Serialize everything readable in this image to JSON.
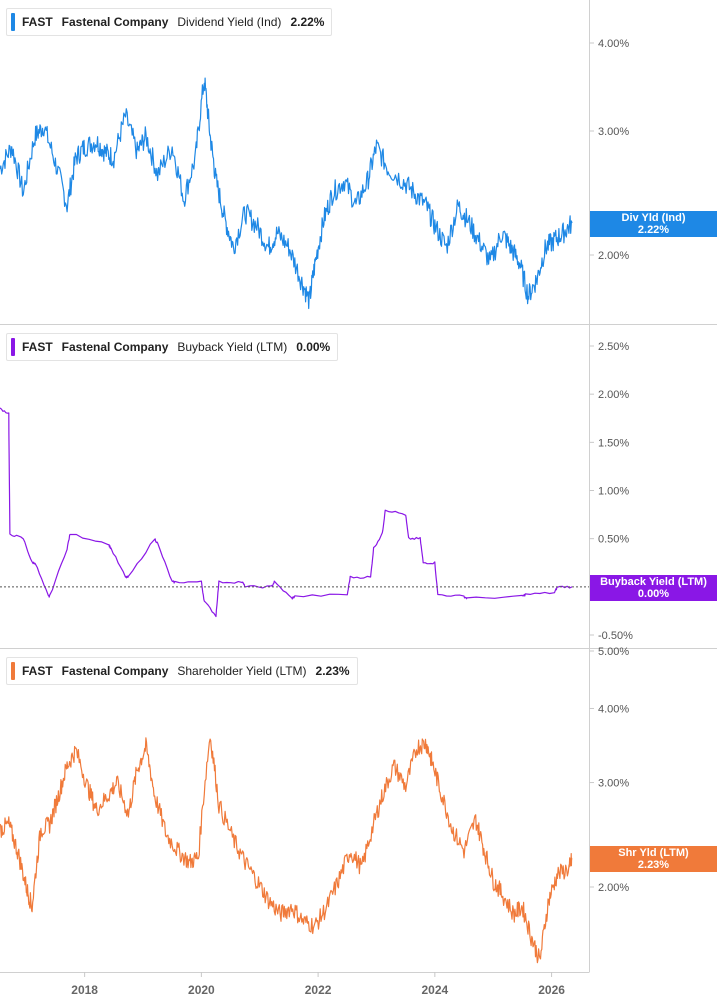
{
  "panels": [
    {
      "ticker": "FAST",
      "company": "Fastenal Company",
      "metric": "Dividend Yield (Ind)",
      "value": "2.22%",
      "color": "#1e88e5",
      "tag_label": "Div Yld (Ind)",
      "tag_value": "2.22%"
    },
    {
      "ticker": "FAST",
      "company": "Fastenal Company",
      "metric": "Buyback Yield (LTM)",
      "value": "0.00%",
      "color": "#8a17e6",
      "tag_label": "Buyback Yield (LTM)",
      "tag_value": "0.00%"
    },
    {
      "ticker": "FAST",
      "company": "Fastenal Company",
      "metric": "Shareholder Yield (LTM)",
      "value": "2.23%",
      "color": "#f07a3a",
      "tag_label": "Shr Yld (LTM)",
      "tag_value": "2.23%"
    }
  ],
  "chart_data": [
    {
      "type": "line",
      "series": [
        {
          "name": "Dividend Yield (Ind)",
          "color": "#1e88e5",
          "x": [
            2016.55,
            2016.75,
            2016.95,
            2017.15,
            2017.3,
            2017.5,
            2017.7,
            2017.85,
            2018.0,
            2018.2,
            2018.35,
            2018.5,
            2018.7,
            2018.9,
            2019.05,
            2019.25,
            2019.5,
            2019.7,
            2019.9,
            2020.05,
            2020.15,
            2020.25,
            2020.4,
            2020.55,
            2020.75,
            2020.95,
            2021.15,
            2021.3,
            2021.5,
            2021.7,
            2021.85,
            2021.95,
            2022.1,
            2022.25,
            2022.45,
            2022.65,
            2022.85,
            2023.0,
            2023.2,
            2023.45,
            2023.65,
            2023.85,
            2024.0,
            2024.2,
            2024.4,
            2024.55,
            2024.75,
            2024.95,
            2025.15,
            2025.3,
            2025.45,
            2025.6,
            2025.75,
            2025.9,
            2026.05,
            2026.2,
            2026.35
          ],
          "y": [
            2.65,
            2.85,
            2.45,
            2.95,
            3.05,
            2.7,
            2.35,
            2.75,
            2.85,
            2.9,
            2.8,
            2.75,
            3.15,
            2.8,
            2.95,
            2.6,
            2.85,
            2.4,
            2.75,
            3.55,
            2.95,
            2.55,
            2.25,
            2.05,
            2.3,
            2.2,
            2.05,
            2.15,
            2.05,
            1.85,
            1.72,
            1.95,
            2.25,
            2.45,
            2.55,
            2.35,
            2.55,
            2.85,
            2.65,
            2.55,
            2.45,
            2.35,
            2.2,
            2.05,
            2.35,
            2.25,
            2.1,
            1.95,
            2.15,
            2.05,
            1.95,
            1.75,
            1.85,
            2.05,
            2.1,
            2.15,
            2.22
          ]
        }
      ],
      "yticks": [
        "4.00%",
        "3.00%",
        "2.00%"
      ],
      "scale": "log"
    },
    {
      "type": "line",
      "series": [
        {
          "name": "Buyback Yield (LTM)",
          "color": "#8a17e6",
          "x": [
            2016.55,
            2016.7,
            2016.72,
            2016.95,
            2017.1,
            2017.15,
            2017.38,
            2017.4,
            2017.7,
            2017.75,
            2018.4,
            2018.45,
            2018.7,
            2018.75,
            2019.2,
            2019.25,
            2019.5,
            2019.55,
            2020.0,
            2020.05,
            2020.25,
            2020.3,
            2020.7,
            2020.75,
            2021.2,
            2021.25,
            2021.55,
            2021.6,
            2022.5,
            2022.55,
            2022.9,
            2022.95,
            2023.1,
            2023.15,
            2023.5,
            2023.55,
            2023.75,
            2023.8,
            2024.0,
            2024.05,
            2024.5,
            2024.55,
            2025.5,
            2025.55,
            2026.05,
            2026.1,
            2026.35
          ],
          "y": [
            1.85,
            1.8,
            0.55,
            0.5,
            0.25,
            0.25,
            -0.1,
            -0.1,
            0.4,
            0.55,
            0.45,
            0.4,
            0.1,
            0.1,
            0.5,
            0.45,
            0.05,
            0.05,
            0.05,
            -0.15,
            -0.3,
            0.05,
            0.05,
            0.0,
            0.0,
            0.05,
            -0.12,
            -0.1,
            -0.08,
            0.1,
            0.1,
            0.4,
            0.55,
            0.8,
            0.75,
            0.5,
            0.5,
            0.25,
            0.25,
            -0.08,
            -0.1,
            -0.12,
            -0.1,
            -0.08,
            -0.06,
            0.0,
            0.0
          ]
        }
      ],
      "yticks": [
        "2.50%",
        "2.00%",
        "1.50%",
        "1.00%",
        "0.50%",
        "-0.50%"
      ],
      "zero_line": true
    },
    {
      "type": "line",
      "series": [
        {
          "name": "Shareholder Yield (LTM)",
          "color": "#f07a3a",
          "x": [
            2016.55,
            2016.7,
            2016.85,
            2017.0,
            2017.1,
            2017.25,
            2017.4,
            2017.55,
            2017.7,
            2017.85,
            2018.05,
            2018.2,
            2018.4,
            2018.55,
            2018.75,
            2018.9,
            2019.05,
            2019.2,
            2019.4,
            2019.6,
            2019.8,
            2019.95,
            2020.15,
            2020.3,
            2020.55,
            2020.75,
            2020.95,
            2021.15,
            2021.35,
            2021.55,
            2021.75,
            2021.95,
            2022.15,
            2022.35,
            2022.55,
            2022.75,
            2022.95,
            2023.1,
            2023.3,
            2023.5,
            2023.7,
            2023.85,
            2023.95,
            2024.1,
            2024.3,
            2024.5,
            2024.7,
            2024.85,
            2025.0,
            2025.15,
            2025.35,
            2025.5,
            2025.65,
            2025.8,
            2025.95,
            2026.1,
            2026.3,
            2026.35
          ],
          "y": [
            2.5,
            2.55,
            2.3,
            2.0,
            1.85,
            2.5,
            2.55,
            2.85,
            3.2,
            3.4,
            2.95,
            2.7,
            2.85,
            3.0,
            2.65,
            3.15,
            3.45,
            2.85,
            2.45,
            2.3,
            2.2,
            2.25,
            3.6,
            2.75,
            2.4,
            2.2,
            2.05,
            1.9,
            1.8,
            1.85,
            1.75,
            1.72,
            1.85,
            2.05,
            2.3,
            2.15,
            2.55,
            2.85,
            3.2,
            2.95,
            3.45,
            3.5,
            3.25,
            2.9,
            2.5,
            2.3,
            2.6,
            2.3,
            2.05,
            1.95,
            1.8,
            1.85,
            1.65,
            1.5,
            1.9,
            2.1,
            2.15,
            2.23
          ]
        }
      ],
      "yticks": [
        "5.00%",
        "4.00%",
        "3.00%",
        "2.00%"
      ],
      "scale": "log"
    }
  ],
  "x_axis": {
    "ticks": [
      "2018",
      "2020",
      "2022",
      "2024",
      "2026"
    ],
    "range": [
      2016.55,
      2026.35
    ]
  }
}
